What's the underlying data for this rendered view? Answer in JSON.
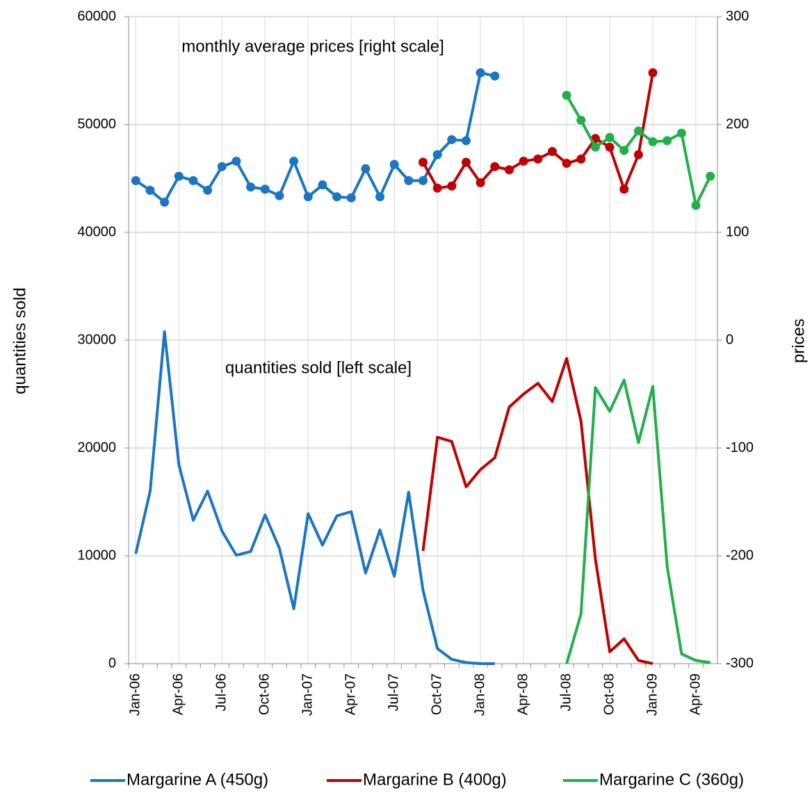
{
  "chart_data": {
    "type": "line",
    "ylabel": "quantities sold",
    "y2label": "prices",
    "annotations": [
      "monthly average prices [right scale]",
      "quantities sold [left scale]"
    ],
    "categories": [
      "Jan-06",
      null,
      null,
      "Apr-06",
      null,
      null,
      "Jul-06",
      null,
      null,
      "Oct-06",
      null,
      null,
      "Jan-07",
      null,
      null,
      "Apr-07",
      null,
      null,
      "Jul-07",
      null,
      null,
      "Oct-07",
      null,
      null,
      "Jan-08",
      null,
      null,
      "Apr-08",
      null,
      null,
      "Jul-08",
      null,
      null,
      "Oct-08",
      null,
      null,
      "Jan-09",
      null,
      null,
      "Apr-09",
      null
    ],
    "ylim": [
      0,
      60000
    ],
    "yticks": [
      0,
      10000,
      20000,
      30000,
      40000,
      50000,
      60000
    ],
    "y2lim": [
      -300,
      300
    ],
    "y2ticks": [
      -300,
      -200,
      -100,
      0,
      100,
      200,
      300
    ],
    "grid": true,
    "legend": "bottom",
    "series": [
      {
        "name": "Margarine A (450g)",
        "color": "#1a75c2",
        "values": [
          10200,
          16000,
          30800,
          18450,
          13300,
          16000,
          12300,
          10060,
          10400,
          13800,
          10700,
          5100,
          13900,
          11000,
          13700,
          14100,
          8400,
          12400,
          8100,
          15900,
          6800,
          1400,
          400,
          100,
          0,
          0,
          null,
          null,
          null,
          null,
          null,
          null,
          null,
          null,
          null,
          null,
          null,
          null,
          null,
          null,
          null
        ]
      },
      {
        "name": "Margarine B (400g)",
        "color": "#c00000",
        "values": [
          null,
          null,
          null,
          null,
          null,
          null,
          null,
          null,
          null,
          null,
          null,
          null,
          null,
          null,
          null,
          null,
          null,
          null,
          null,
          null,
          10450,
          21000,
          20600,
          16400,
          18000,
          19100,
          23800,
          25000,
          26000,
          24300,
          28300,
          22500,
          9700,
          1100,
          2300,
          300,
          0,
          null,
          null,
          null,
          null
        ]
      },
      {
        "name": "Margarine C (360g)",
        "color": "#1fb04a",
        "values": [
          null,
          null,
          null,
          null,
          null,
          null,
          null,
          null,
          null,
          null,
          null,
          null,
          null,
          null,
          null,
          null,
          null,
          null,
          null,
          null,
          null,
          null,
          null,
          null,
          null,
          null,
          null,
          null,
          null,
          null,
          0,
          4600,
          25600,
          23400,
          26300,
          20500,
          25700,
          9000,
          900,
          300,
          100
        ]
      },
      {
        "axis": "y2",
        "marker": true,
        "color": "#1a75c2",
        "values": [
          148,
          139,
          128,
          152,
          148,
          139,
          161,
          166,
          142,
          140,
          134,
          166,
          133,
          144,
          133,
          132,
          159,
          133,
          163,
          148,
          148,
          172,
          186,
          185,
          248,
          245,
          null,
          null,
          null,
          null,
          null,
          null,
          null,
          null,
          null,
          null,
          null,
          null,
          null,
          null,
          null
        ]
      },
      {
        "axis": "y2",
        "marker": true,
        "color": "#c00000",
        "values": [
          null,
          null,
          null,
          null,
          null,
          null,
          null,
          null,
          null,
          null,
          null,
          null,
          null,
          null,
          null,
          null,
          null,
          null,
          null,
          null,
          165,
          141,
          143,
          165,
          146,
          161,
          158,
          166,
          168,
          175,
          164,
          168,
          187,
          179,
          140,
          172,
          248,
          null,
          null,
          null,
          null
        ]
      },
      {
        "axis": "y2",
        "marker": true,
        "color": "#1fb04a",
        "values": [
          null,
          null,
          null,
          null,
          null,
          null,
          null,
          null,
          null,
          null,
          null,
          null,
          null,
          null,
          null,
          null,
          null,
          null,
          null,
          null,
          null,
          null,
          null,
          null,
          null,
          null,
          null,
          null,
          null,
          null,
          227,
          204,
          179,
          188,
          176,
          194,
          184,
          185,
          192,
          125,
          152
        ]
      }
    ]
  }
}
